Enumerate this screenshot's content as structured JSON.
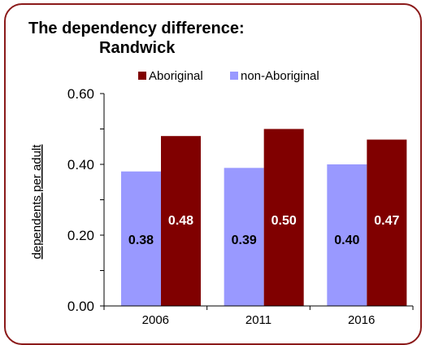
{
  "chart_data": {
    "type": "bar",
    "title_line1": "The dependency difference:",
    "title_line2": "Randwick",
    "ylabel": "dependents per adult",
    "categories": [
      "2006",
      "2011",
      "2016"
    ],
    "series": [
      {
        "name": "non-Aboriginal",
        "color": "#9999ff",
        "values": [
          0.38,
          0.39,
          0.4
        ],
        "labels": [
          "0.38",
          "0.39",
          "0.40"
        ]
      },
      {
        "name": "Aboriginal",
        "color": "#800000",
        "values": [
          0.48,
          0.5,
          0.47
        ],
        "labels": [
          "0.48",
          "0.50",
          "0.47"
        ]
      }
    ],
    "legend_order": [
      1,
      0
    ],
    "legend_position": "top",
    "ylim": [
      0,
      0.6
    ],
    "yticks": [
      0,
      0.2,
      0.4,
      0.6
    ],
    "ytick_labels": [
      "0.00",
      "0.20",
      "0.40",
      "0.60"
    ],
    "grid": false
  }
}
